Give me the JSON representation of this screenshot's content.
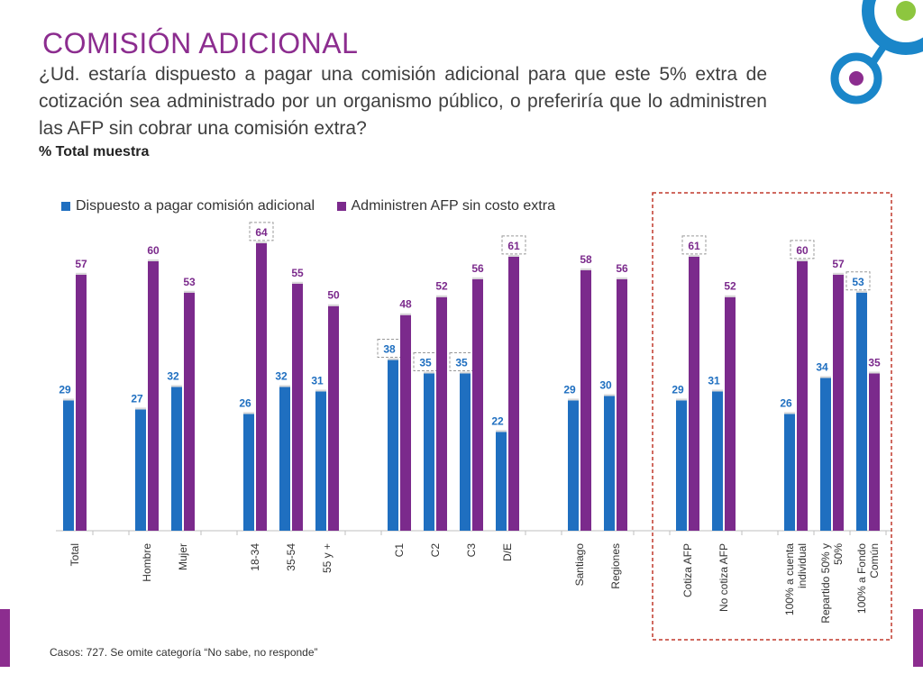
{
  "header": {
    "title": "COMISIÓN ADICIONAL",
    "question": "¿Ud. estaría dispuesto a pagar una comisión adicional para que este 5% extra de cotización sea administrado por un organismo público, o preferiría que lo administren las AFP sin cobrar una comisión extra?",
    "base": "% Total muestra"
  },
  "footnote": "Casos: 727. Se omite categoría “No sabe, no responde”",
  "colors": {
    "blue": "#1f6fc0",
    "purple": "#7b2a8c",
    "accent": "#8c2d8f",
    "highlight_box": "#c0392b"
  },
  "chart_data": {
    "type": "bar",
    "categories": [
      "Total",
      "Hombre",
      "Mujer",
      "18-34",
      "35-54",
      "55 y +",
      "C1",
      "C2",
      "C3",
      "D/E",
      "Santiago",
      "Regiones",
      "Cotiza AFP",
      "No cotiza AFP",
      "100% a cuenta individual",
      "Repartido 50% y 50%",
      "100% a Fondo Común"
    ],
    "series": [
      {
        "name": "Dispuesto a pagar comisión adicional",
        "values": [
          29,
          27,
          32,
          26,
          32,
          31,
          38,
          35,
          35,
          22,
          29,
          30,
          29,
          31,
          26,
          34,
          53
        ]
      },
      {
        "name": "Administren AFP sin costo extra",
        "values": [
          57,
          60,
          53,
          64,
          55,
          50,
          48,
          52,
          56,
          61,
          58,
          56,
          61,
          52,
          60,
          57,
          35
        ]
      }
    ],
    "ylim": [
      0,
      70
    ],
    "legend_position": "top-left",
    "grid": false,
    "highlighted": [
      {
        "category": "18-34",
        "series": 1
      },
      {
        "category": "C1",
        "series": 0
      },
      {
        "category": "C2",
        "series": 0
      },
      {
        "category": "C3",
        "series": 0
      },
      {
        "category": "D/E",
        "series": 1
      },
      {
        "category": "Cotiza AFP",
        "series": 1
      },
      {
        "category": "100% a cuenta individual",
        "series": 1
      },
      {
        "category": "100% a Fondo Común",
        "series": 0
      }
    ]
  }
}
